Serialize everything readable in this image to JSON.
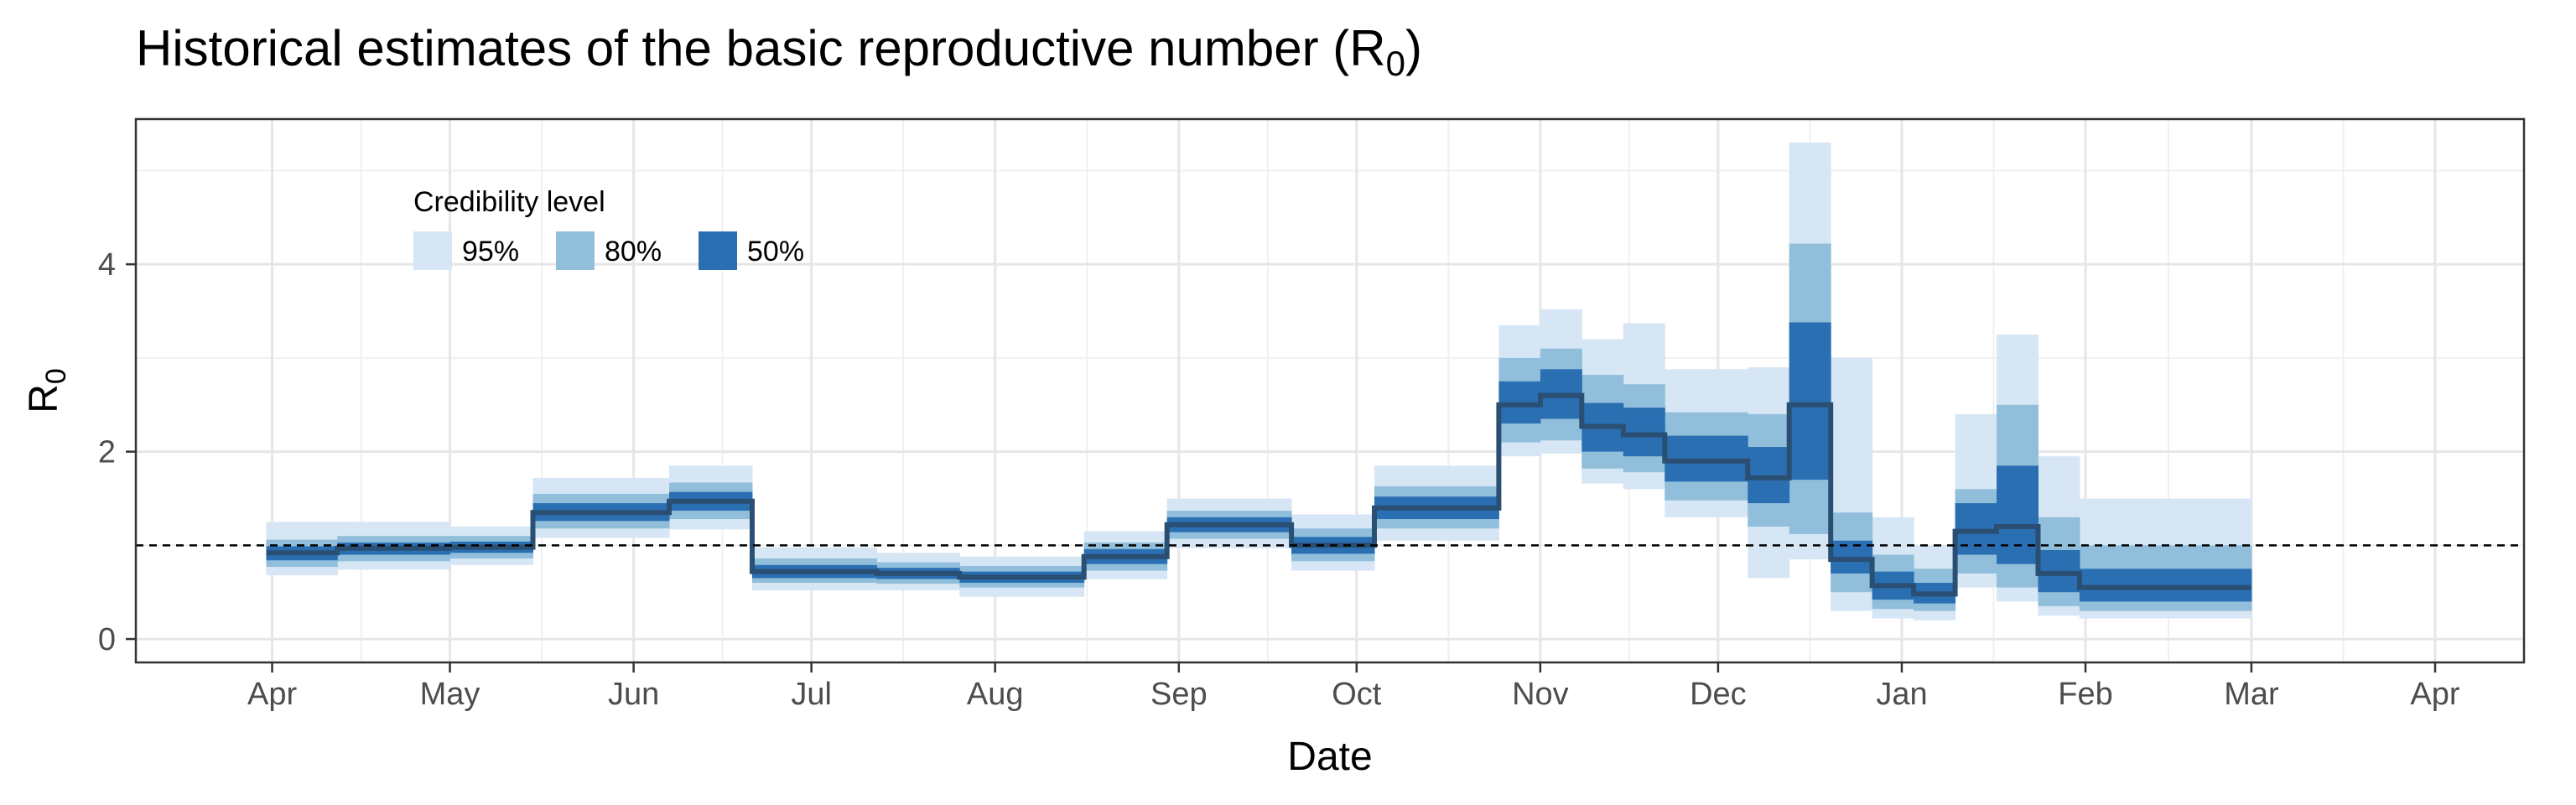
{
  "chart_data": {
    "type": "area",
    "title": "Historical estimates of the basic reproductive number (R",
    "title_subscript": "0",
    "title_suffix": ")",
    "xlabel": "Date",
    "ylabel": "R",
    "ylabel_subscript": "0",
    "x_ticks": [
      {
        "date": "2020-04-01",
        "label": "Apr"
      },
      {
        "date": "2020-05-01",
        "label": "May"
      },
      {
        "date": "2020-06-01",
        "label": "Jun"
      },
      {
        "date": "2020-07-01",
        "label": "Jul"
      },
      {
        "date": "2020-08-01",
        "label": "Aug"
      },
      {
        "date": "2020-09-01",
        "label": "Sep"
      },
      {
        "date": "2020-10-01",
        "label": "Oct"
      },
      {
        "date": "2020-11-01",
        "label": "Nov"
      },
      {
        "date": "2020-12-01",
        "label": "Dec"
      },
      {
        "date": "2021-01-01",
        "label": "Jan"
      },
      {
        "date": "2021-02-01",
        "label": "Feb"
      },
      {
        "date": "2021-03-01",
        "label": "Mar"
      },
      {
        "date": "2021-04-01",
        "label": "Apr"
      }
    ],
    "xlim": [
      "2020-03-09",
      "2021-04-16"
    ],
    "y_ticks": [
      0,
      2,
      4
    ],
    "ylim": [
      -0.25,
      5.55
    ],
    "grid": true,
    "reference_line": {
      "y": 1,
      "style": "dashed"
    },
    "legend": {
      "title": "Credibility level",
      "placement": "top-left inside",
      "entries": [
        {
          "label": "95%",
          "color": "#d6e6f4"
        },
        {
          "label": "80%",
          "color": "#91bfdb"
        },
        {
          "label": "50%",
          "color": "#2b6fb3"
        }
      ]
    },
    "median_color": "#2a4f72",
    "segments": [
      {
        "start": "2020-03-31",
        "end": "2020-04-12",
        "median": 0.92,
        "ci50": [
          0.84,
          0.99
        ],
        "ci80": [
          0.77,
          1.06
        ],
        "ci95": [
          0.68,
          1.25
        ]
      },
      {
        "start": "2020-04-12",
        "end": "2020-05-01",
        "median": 0.97,
        "ci50": [
          0.9,
          1.03
        ],
        "ci80": [
          0.83,
          1.1
        ],
        "ci95": [
          0.74,
          1.25
        ]
      },
      {
        "start": "2020-05-01",
        "end": "2020-05-15",
        "median": 0.98,
        "ci50": [
          0.92,
          1.04
        ],
        "ci80": [
          0.86,
          1.1
        ],
        "ci95": [
          0.79,
          1.2
        ]
      },
      {
        "start": "2020-05-15",
        "end": "2020-06-07",
        "median": 1.35,
        "ci50": [
          1.26,
          1.45
        ],
        "ci80": [
          1.18,
          1.55
        ],
        "ci95": [
          1.08,
          1.72
        ]
      },
      {
        "start": "2020-06-07",
        "end": "2020-06-21",
        "median": 1.47,
        "ci50": [
          1.37,
          1.57
        ],
        "ci80": [
          1.28,
          1.67
        ],
        "ci95": [
          1.17,
          1.85
        ]
      },
      {
        "start": "2020-06-21",
        "end": "2020-07-12",
        "median": 0.72,
        "ci50": [
          0.65,
          0.79
        ],
        "ci80": [
          0.6,
          0.86
        ],
        "ci95": [
          0.52,
          0.98
        ]
      },
      {
        "start": "2020-07-12",
        "end": "2020-07-26",
        "median": 0.7,
        "ci50": [
          0.64,
          0.76
        ],
        "ci80": [
          0.59,
          0.82
        ],
        "ci95": [
          0.52,
          0.92
        ]
      },
      {
        "start": "2020-07-26",
        "end": "2020-08-16",
        "median": 0.66,
        "ci50": [
          0.6,
          0.72
        ],
        "ci80": [
          0.55,
          0.78
        ],
        "ci95": [
          0.45,
          0.88
        ]
      },
      {
        "start": "2020-08-16",
        "end": "2020-08-30",
        "median": 0.88,
        "ci50": [
          0.8,
          0.96
        ],
        "ci80": [
          0.73,
          1.03
        ],
        "ci95": [
          0.64,
          1.15
        ]
      },
      {
        "start": "2020-08-30",
        "end": "2020-09-20",
        "median": 1.22,
        "ci50": [
          1.14,
          1.3
        ],
        "ci80": [
          1.07,
          1.37
        ],
        "ci95": [
          0.97,
          1.5
        ]
      },
      {
        "start": "2020-09-20",
        "end": "2020-10-04",
        "median": 1.0,
        "ci50": [
          0.91,
          1.09
        ],
        "ci80": [
          0.83,
          1.18
        ],
        "ci95": [
          0.73,
          1.33
        ]
      },
      {
        "start": "2020-10-04",
        "end": "2020-10-25",
        "median": 1.4,
        "ci50": [
          1.28,
          1.52
        ],
        "ci80": [
          1.18,
          1.63
        ],
        "ci95": [
          1.05,
          1.85
        ]
      },
      {
        "start": "2020-10-25",
        "end": "2020-11-01",
        "median": 2.5,
        "ci50": [
          2.3,
          2.75
        ],
        "ci80": [
          2.1,
          3.0
        ],
        "ci95": [
          1.95,
          3.35
        ]
      },
      {
        "start": "2020-11-01",
        "end": "2020-11-08",
        "median": 2.6,
        "ci50": [
          2.35,
          2.88
        ],
        "ci80": [
          2.12,
          3.1
        ],
        "ci95": [
          1.98,
          3.52
        ]
      },
      {
        "start": "2020-11-08",
        "end": "2020-11-15",
        "median": 2.27,
        "ci50": [
          2.0,
          2.52
        ],
        "ci80": [
          1.82,
          2.82
        ],
        "ci95": [
          1.66,
          3.2
        ]
      },
      {
        "start": "2020-11-15",
        "end": "2020-11-22",
        "median": 2.18,
        "ci50": [
          1.95,
          2.47
        ],
        "ci80": [
          1.78,
          2.72
        ],
        "ci95": [
          1.6,
          3.37
        ]
      },
      {
        "start": "2020-11-22",
        "end": "2020-12-06",
        "median": 1.9,
        "ci50": [
          1.68,
          2.17
        ],
        "ci80": [
          1.48,
          2.42
        ],
        "ci95": [
          1.3,
          2.88
        ]
      },
      {
        "start": "2020-12-06",
        "end": "2020-12-13",
        "median": 1.72,
        "ci50": [
          1.45,
          2.05
        ],
        "ci80": [
          1.2,
          2.4
        ],
        "ci95": [
          0.65,
          2.9
        ]
      },
      {
        "start": "2020-12-13",
        "end": "2020-12-20",
        "median": 2.5,
        "ci50": [
          1.7,
          3.38
        ],
        "ci80": [
          1.12,
          4.22
        ],
        "ci95": [
          0.85,
          5.3
        ]
      },
      {
        "start": "2020-12-20",
        "end": "2020-12-27",
        "median": 0.85,
        "ci50": [
          0.7,
          1.05
        ],
        "ci80": [
          0.5,
          1.35
        ],
        "ci95": [
          0.3,
          3.0
        ]
      },
      {
        "start": "2020-12-27",
        "end": "2021-01-03",
        "median": 0.57,
        "ci50": [
          0.42,
          0.72
        ],
        "ci80": [
          0.32,
          0.9
        ],
        "ci95": [
          0.22,
          1.3
        ]
      },
      {
        "start": "2021-01-03",
        "end": "2021-01-10",
        "median": 0.48,
        "ci50": [
          0.38,
          0.6
        ],
        "ci80": [
          0.3,
          0.75
        ],
        "ci95": [
          0.2,
          1.0
        ]
      },
      {
        "start": "2021-01-10",
        "end": "2021-01-17",
        "median": 1.15,
        "ci50": [
          0.9,
          1.45
        ],
        "ci80": [
          0.7,
          1.6
        ],
        "ci95": [
          0.55,
          2.4
        ]
      },
      {
        "start": "2021-01-17",
        "end": "2021-01-24",
        "median": 1.2,
        "ci50": [
          0.8,
          1.85
        ],
        "ci80": [
          0.55,
          2.5
        ],
        "ci95": [
          0.4,
          3.25
        ]
      },
      {
        "start": "2021-01-24",
        "end": "2021-01-31",
        "median": 0.7,
        "ci50": [
          0.5,
          0.95
        ],
        "ci80": [
          0.35,
          1.3
        ],
        "ci95": [
          0.25,
          1.95
        ]
      },
      {
        "start": "2021-01-31",
        "end": "2021-03-01",
        "median": 0.55,
        "ci50": [
          0.4,
          0.75
        ],
        "ci80": [
          0.3,
          1.0
        ],
        "ci95": [
          0.22,
          1.5
        ]
      }
    ]
  }
}
